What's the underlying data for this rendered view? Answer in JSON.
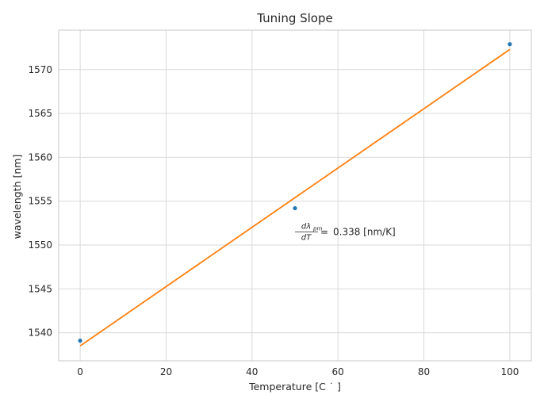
{
  "chart_data": {
    "type": "scatter",
    "title": "Tuning Slope",
    "xlabel": "Temperature [C ˙ ]",
    "ylabel": "wavelength [nm]",
    "xlim": [
      -5,
      105
    ],
    "ylim": [
      1536.8,
      1574.5
    ],
    "grid": true,
    "x_ticks": [
      0,
      20,
      40,
      60,
      80,
      100
    ],
    "y_ticks": [
      1540,
      1545,
      1550,
      1555,
      1560,
      1565,
      1570
    ],
    "series": [
      {
        "kind": "scatter",
        "color": "#1f77b4",
        "x": [
          0,
          50,
          100
        ],
        "y": [
          1539.1,
          1554.2,
          1572.9
        ]
      },
      {
        "kind": "line",
        "color": "#ff7f0e",
        "x": [
          0,
          100
        ],
        "y": [
          1538.5,
          1572.3
        ]
      }
    ],
    "annotation": {
      "numerator": "dλ",
      "numerator_sub": "pm",
      "denominator": "dT",
      "equals": "=",
      "value_text": "0.338 [nm/K]",
      "at": {
        "x": 50,
        "y": 1551.5
      }
    }
  }
}
